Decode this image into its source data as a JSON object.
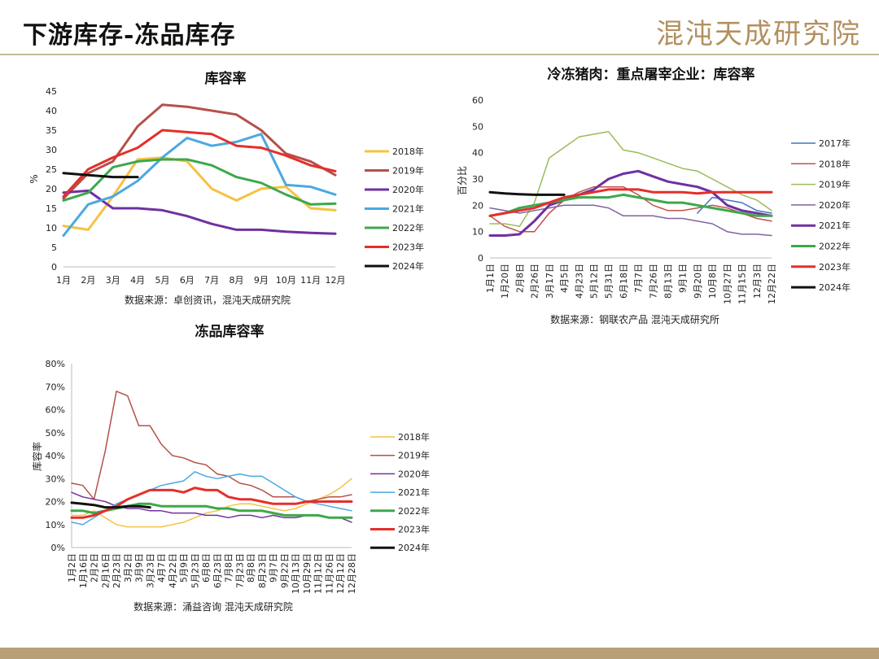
{
  "header": {
    "title": "下游库存-冻品库存",
    "brand": "混沌天成研究院"
  },
  "chart_data": [
    {
      "type": "line",
      "title": "库容率",
      "ylabel": "%",
      "ylim": [
        0,
        45
      ],
      "yticks": [
        0,
        5,
        10,
        15,
        20,
        25,
        30,
        35,
        40,
        45
      ],
      "categories": [
        "1月",
        "2月",
        "3月",
        "4月",
        "5月",
        "6月",
        "7月",
        "8月",
        "9月",
        "10月",
        "11月",
        "12月"
      ],
      "source": "数据来源：卓创资讯，混沌天成研究院",
      "legend_position": "right",
      "series": [
        {
          "name": "2018年",
          "color": "#f6c242",
          "values": [
            10.5,
            9.5,
            18,
            27.5,
            28,
            27,
            20,
            17,
            20,
            20.5,
            15,
            14.5
          ]
        },
        {
          "name": "2019年",
          "color": "#b5514a",
          "values": [
            17.5,
            24,
            27,
            36,
            41.5,
            41,
            40,
            39,
            35,
            29,
            27,
            23.5
          ]
        },
        {
          "name": "2020年",
          "color": "#7030a0",
          "values": [
            19,
            19.5,
            15,
            15,
            14.5,
            13,
            11,
            9.5,
            9.5,
            9,
            8.7,
            8.5
          ]
        },
        {
          "name": "2021年",
          "color": "#4aa9e0",
          "values": [
            8,
            16,
            18,
            22,
            28,
            33,
            31,
            32,
            34,
            21,
            20.5,
            18.5
          ]
        },
        {
          "name": "2022年",
          "color": "#3da84b",
          "values": [
            17,
            19,
            25.5,
            27,
            27.5,
            27.5,
            26,
            23,
            21.5,
            18.5,
            16,
            16.2
          ]
        },
        {
          "name": "2023年",
          "color": "#e3302a",
          "values": [
            18,
            25,
            28,
            30.5,
            35,
            34.5,
            34,
            31,
            30.5,
            28.5,
            26,
            24.5
          ]
        },
        {
          "name": "2024年",
          "color": "#111111",
          "values": [
            24,
            23.5,
            23,
            23,
            null,
            null,
            null,
            null,
            null,
            null,
            null,
            null
          ]
        }
      ]
    },
    {
      "type": "line",
      "title": "冷冻猪肉：重点屠宰企业：库容率",
      "ylabel": "百分比",
      "ylim": [
        0,
        60
      ],
      "yticks": [
        0,
        10,
        20,
        30,
        40,
        50,
        60
      ],
      "categories": [
        "1月1日",
        "1月20日",
        "2月8日",
        "2月26日",
        "3月17日",
        "4月5日",
        "4月23日",
        "5月12日",
        "5月31日",
        "6月18日",
        "7月7日",
        "7月26日",
        "8月13日",
        "9月1日",
        "9月20日",
        "10月8日",
        "10月27日",
        "11月15日",
        "12月3日",
        "12月22日"
      ],
      "source": "数据来源：钢联农产品 混沌天成研究所",
      "legend_position": "right",
      "series": [
        {
          "name": "2017年",
          "color": "#4472c4",
          "values": [
            null,
            null,
            null,
            null,
            null,
            null,
            null,
            null,
            null,
            null,
            null,
            null,
            null,
            null,
            17,
            23,
            22,
            21,
            18,
            17
          ]
        },
        {
          "name": "2018年",
          "color": "#c0504d",
          "values": [
            16,
            12,
            10,
            10,
            17,
            22,
            25,
            27,
            27,
            27,
            24,
            20,
            18,
            18,
            19,
            20,
            19,
            17,
            15,
            14
          ]
        },
        {
          "name": "2019年",
          "color": "#9bbb59",
          "values": [
            13,
            13,
            12,
            21,
            38,
            42,
            46,
            47,
            48,
            41,
            40,
            38,
            36,
            34,
            33,
            30,
            27,
            24,
            22,
            18
          ]
        },
        {
          "name": "2020年",
          "color": "#8064a2",
          "values": [
            19,
            18,
            17,
            18,
            19,
            20,
            20,
            20,
            19,
            16,
            16,
            16,
            15,
            15,
            14,
            13,
            10,
            9,
            9,
            8.5
          ]
        },
        {
          "name": "2021年",
          "color": "#7030a0",
          "values": [
            8.5,
            8.5,
            9,
            14,
            20,
            22,
            24,
            26,
            30,
            32,
            33,
            31,
            29,
            28,
            27,
            25,
            20,
            18,
            17,
            16
          ]
        },
        {
          "name": "2022年",
          "color": "#3da84b",
          "values": [
            16,
            17,
            19,
            20,
            21,
            22,
            23,
            23,
            23,
            24,
            23,
            22,
            21,
            21,
            20,
            19,
            18,
            17,
            16,
            16
          ]
        },
        {
          "name": "2023年",
          "color": "#e3302a",
          "values": [
            16,
            17,
            18,
            19,
            21,
            23,
            24,
            25,
            26,
            26,
            26,
            25,
            25,
            25,
            24.5,
            25,
            25,
            25,
            25,
            25
          ]
        },
        {
          "name": "2024年",
          "color": "#111111",
          "values": [
            25,
            24.5,
            24.2,
            24,
            24,
            24,
            null,
            null,
            null,
            null,
            null,
            null,
            null,
            null,
            null,
            null,
            null,
            null,
            null,
            null
          ]
        }
      ]
    },
    {
      "type": "line",
      "title": "冻品库容率",
      "ylabel": "库容率",
      "ylim": [
        0,
        80
      ],
      "yticks": [
        "0%",
        "10%",
        "20%",
        "30%",
        "40%",
        "50%",
        "60%",
        "70%",
        "80%"
      ],
      "categories": [
        "1月2日",
        "1月16日",
        "2月2日",
        "2月16日",
        "2月23日",
        "3月2日",
        "3月9日",
        "3月23日",
        "4月7日",
        "4月22日",
        "5月9日",
        "5月23日",
        "6月8日",
        "6月23日",
        "7月8日",
        "7月23日",
        "8月8日",
        "8月23日",
        "9月7日",
        "9月22日",
        "10月13日",
        "10月29日",
        "11月12日",
        "11月26日",
        "12月12日",
        "12月28日"
      ],
      "source": "数据来源：涌益咨询 混沌天成研究院",
      "legend_position": "right",
      "series": [
        {
          "name": "2018年",
          "color": "#f6c242",
          "values": [
            14,
            14,
            16,
            13,
            10,
            9,
            9,
            9,
            9,
            10,
            11,
            13,
            15,
            16,
            18,
            19,
            19,
            18,
            17,
            16,
            17,
            19,
            21,
            23,
            26,
            30
          ]
        },
        {
          "name": "2019年",
          "color": "#b5514a",
          "values": [
            28,
            27,
            21,
            42,
            68,
            66,
            53,
            53,
            45,
            40,
            39,
            37,
            36,
            32,
            31,
            28,
            27,
            25,
            22,
            22,
            22,
            20,
            21,
            22,
            22,
            23
          ]
        },
        {
          "name": "2020年",
          "color": "#7030a0",
          "values": [
            24,
            22,
            21,
            20,
            18,
            17,
            17,
            16,
            16,
            15,
            15,
            15,
            14,
            14,
            13,
            14,
            14,
            13,
            14,
            13,
            13,
            14,
            14,
            13,
            13,
            11
          ]
        },
        {
          "name": "2021年",
          "color": "#4aa9e0",
          "values": [
            11,
            10,
            13,
            16,
            19,
            21,
            23,
            25,
            27,
            28,
            29,
            33,
            31,
            30,
            31,
            32,
            31,
            31,
            28,
            25,
            22,
            20,
            19,
            18,
            17,
            16
          ]
        },
        {
          "name": "2022年",
          "color": "#3da84b",
          "values": [
            16,
            16,
            15,
            16,
            17,
            18,
            19,
            19,
            18,
            18,
            18,
            18,
            18,
            17,
            17,
            16,
            16,
            16,
            15,
            14,
            14,
            14,
            14,
            13,
            13,
            13
          ]
        },
        {
          "name": "2023年",
          "color": "#e3302a",
          "values": [
            13,
            13,
            14,
            16,
            18,
            21,
            23,
            25,
            25,
            25,
            24,
            26,
            25,
            25,
            22,
            21,
            21,
            20,
            19,
            19,
            19,
            20,
            20,
            20,
            20,
            20
          ]
        },
        {
          "name": "2024年",
          "color": "#111111",
          "values": [
            19.5,
            19,
            18.5,
            17.5,
            17.5,
            18,
            18,
            17.5,
            null,
            null,
            null,
            null,
            null,
            null,
            null,
            null,
            null,
            null,
            null,
            null,
            null,
            null,
            null,
            null,
            null,
            null
          ]
        }
      ]
    }
  ]
}
